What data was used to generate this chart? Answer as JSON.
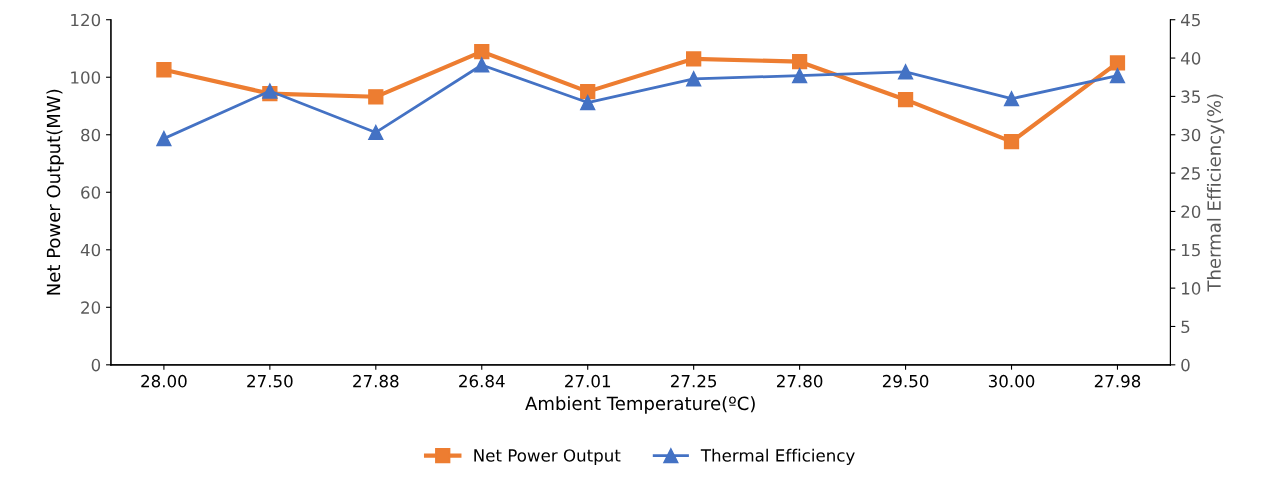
{
  "chart_data": {
    "type": "line",
    "xlabel": "Ambient Temperature(ºC)",
    "ylabel": "Net Power Output(MW)",
    "y2label": "Thermal Efficiency(%)",
    "categories": [
      "28.00",
      "27.50",
      "27.88",
      "26.84",
      "27.01",
      "27.25",
      "27.80",
      "29.50",
      "30.00",
      "27.98"
    ],
    "series": [
      {
        "name": "Net Power Output",
        "color": "#ed7d31",
        "marker": "square",
        "values": [
          102.6,
          94.3,
          93.2,
          108.9,
          95,
          106.4,
          105.4,
          92.2,
          77.6,
          105.0
        ]
      },
      {
        "name": "Thermal Efficiency",
        "color": "#4472c4",
        "marker": "triangle",
        "axis": "y2",
        "values": [
          29.5,
          35.7,
          30.3,
          39.1,
          34.2,
          37.3,
          37.7,
          38.2,
          34.7,
          37.7
        ]
      }
    ],
    "ylim": [
      0,
      120
    ],
    "yticks": [
      0,
      20,
      40,
      60,
      80,
      100,
      120
    ],
    "y2lim": [
      0,
      45
    ],
    "y2ticks": [
      0,
      5,
      10,
      15,
      20,
      25,
      30,
      35,
      40,
      45
    ],
    "grid": false,
    "legend": "bottom",
    "line_style": "solid"
  }
}
